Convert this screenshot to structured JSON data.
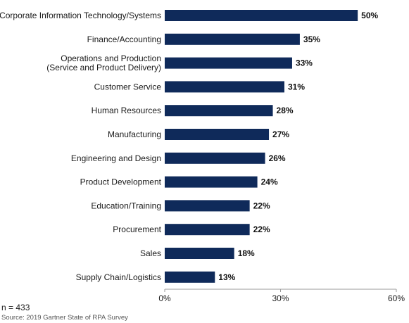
{
  "chart_data": {
    "type": "bar",
    "orientation": "horizontal",
    "categories": [
      [
        "Corporate Information Technology/Systems"
      ],
      [
        "Finance/Accounting"
      ],
      [
        "Operations and Production",
        "(Service and Product Delivery)"
      ],
      [
        "Customer Service"
      ],
      [
        "Human Resources"
      ],
      [
        "Manufacturing"
      ],
      [
        "Engineering and Design"
      ],
      [
        "Product Development"
      ],
      [
        "Education/Training"
      ],
      [
        "Procurement"
      ],
      [
        "Sales"
      ],
      [
        "Supply Chain/Logistics"
      ]
    ],
    "values": [
      50,
      35,
      33,
      31,
      28,
      27,
      26,
      24,
      22,
      22,
      18,
      13
    ],
    "value_labels": [
      "50%",
      "35%",
      "33%",
      "31%",
      "28%",
      "27%",
      "26%",
      "24%",
      "22%",
      "22%",
      "18%",
      "13%"
    ],
    "xlim": [
      0,
      60
    ],
    "xticks": [
      0,
      30,
      60
    ],
    "xtick_labels": [
      "0%",
      "30%",
      "60%"
    ],
    "bar_color": "#0f2a5a",
    "grid": false,
    "legend": "none"
  },
  "footnote": {
    "sample": "n = 433",
    "source": "Source: 2019 Gartner State of RPA Survey"
  }
}
